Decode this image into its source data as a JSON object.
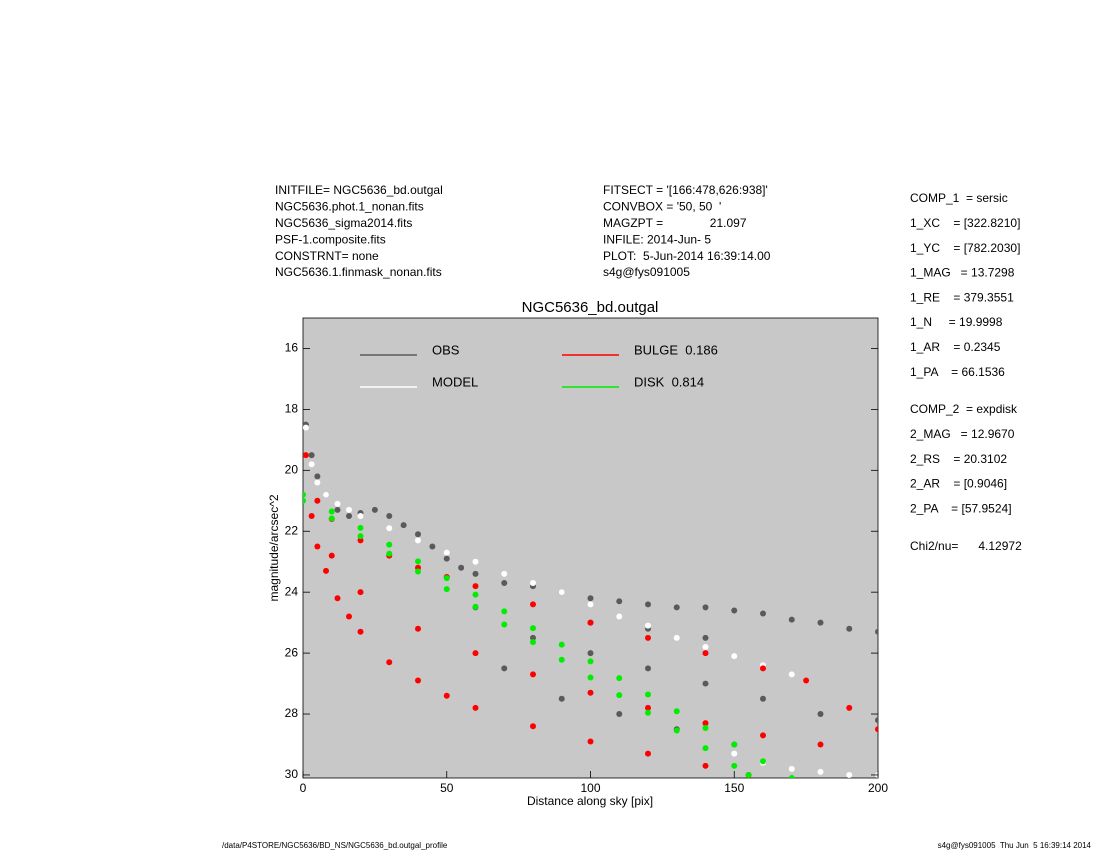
{
  "header_left": [
    "INITFILE= NGC5636_bd.outgal",
    "NGC5636.phot.1_nonan.fits",
    "NGC5636_sigma2014.fits",
    "PSF-1.composite.fits",
    "CONSTRNT= none",
    "NGC5636.1.finmask_nonan.fits"
  ],
  "header_middle": [
    "FITSECT = '[166:478,626:938]'",
    "CONVBOX = '50, 50  '",
    "MAGZPT =              21.097",
    "INFILE: 2014-Jun- 5",
    "PLOT:  5-Jun-2014 16:39:14.00",
    "s4g@fys091005"
  ],
  "params": [
    [
      "COMP_1  = sersic",
      "1_XC    = [322.8210]",
      "1_YC    = [782.2030]",
      "1_MAG   = 13.7298",
      "1_RE    = 379.3551",
      "1_N     = 19.9998",
      "1_AR    = 0.2345",
      "1_PA    = 66.1536"
    ],
    [
      "COMP_2  = expdisk",
      "2_MAG   = 12.9670",
      "2_RS    = 20.3102",
      "2_AR    = [0.9046]",
      "2_PA    = [57.9524]"
    ],
    [
      "Chi2/nu=      4.12972"
    ]
  ],
  "footer_left": "/data/P4STORE/NGC5636/BD_NS/NGC5636_bd.outgal_profile",
  "footer_right": "s4g@fys091005  Thu Jun  5 16:39:14 2014",
  "chart_data": {
    "type": "scatter",
    "title": "NGC5636_bd.outgal",
    "xlabel": "Distance along sky [pix]",
    "ylabel": "magnitude/arcsec^2",
    "xlim": [
      0,
      200
    ],
    "ylim": [
      30.1,
      15
    ],
    "xticks": [
      0,
      50,
      100,
      150,
      200
    ],
    "yticks": [
      16,
      18,
      20,
      22,
      24,
      26,
      28,
      30
    ],
    "background": "#c8c8c8",
    "series": [
      {
        "name": "OBS",
        "color": "#5a5a5a",
        "x": [
          1,
          3,
          5,
          8,
          12,
          16,
          20,
          25,
          30,
          35,
          40,
          45,
          50,
          55,
          60,
          70,
          80,
          90,
          100,
          110,
          120,
          130,
          140,
          150,
          160,
          170,
          180,
          190,
          200,
          60,
          80,
          100,
          120,
          140,
          160,
          180,
          200,
          70,
          90,
          110,
          130,
          150,
          100,
          120,
          140
        ],
        "y": [
          18.5,
          19.5,
          20.2,
          20.8,
          21.3,
          21.5,
          21.4,
          21.3,
          21.5,
          21.8,
          22.1,
          22.5,
          22.9,
          23.2,
          23.4,
          23.7,
          23.8,
          24.0,
          24.2,
          24.3,
          24.4,
          24.5,
          24.5,
          24.6,
          24.7,
          24.9,
          25.0,
          25.2,
          25.3,
          24.5,
          25.5,
          26,
          26.5,
          27,
          27.5,
          28,
          28.2,
          26.5,
          27.5,
          28,
          28.5,
          29,
          25,
          25.2,
          25.5
        ]
      },
      {
        "name": "MODEL",
        "color": "#ffffff",
        "x": [
          1,
          3,
          5,
          8,
          12,
          16,
          20,
          30,
          40,
          50,
          60,
          70,
          80,
          90,
          100,
          110,
          120,
          130,
          140,
          150,
          160,
          170,
          175,
          150,
          160,
          170,
          180,
          190,
          200
        ],
        "y": [
          18.6,
          19.8,
          20.4,
          20.8,
          21.1,
          21.3,
          21.5,
          21.9,
          22.3,
          22.7,
          23.0,
          23.4,
          23.7,
          24.0,
          24.4,
          24.8,
          25.1,
          25.5,
          25.8,
          26.1,
          26.4,
          26.7,
          26.9,
          29.3,
          29.6,
          29.8,
          29.9,
          30.0,
          30.0
        ]
      },
      {
        "name": "BULGE  0.186",
        "color": "#ff0000",
        "x": [
          1,
          5,
          10,
          20,
          30,
          40,
          50,
          60,
          80,
          100,
          120,
          140,
          160,
          175,
          190,
          200,
          3,
          5,
          8,
          12,
          16,
          20,
          30,
          40,
          50,
          60,
          80,
          100,
          120,
          140,
          155,
          10,
          20,
          40,
          60,
          80,
          100,
          120,
          140,
          160,
          180
        ],
        "y": [
          19.5,
          21.0,
          21.6,
          22.3,
          22.8,
          23.2,
          23.5,
          23.8,
          24.4,
          25.0,
          25.5,
          26.0,
          26.5,
          26.9,
          27.8,
          28.5,
          21.5,
          22.5,
          23.3,
          24.2,
          24.8,
          25.3,
          26.3,
          26.9,
          27.4,
          27.8,
          28.4,
          28.9,
          29.3,
          29.7,
          30.0,
          22.8,
          24.0,
          25.2,
          26.0,
          26.7,
          27.3,
          27.8,
          28.3,
          28.7,
          29.0
        ]
      },
      {
        "name": "DISK  0.814",
        "color": "#00ee00",
        "x": [
          0,
          10,
          20,
          30,
          40,
          50,
          60,
          70,
          80,
          90,
          100,
          110,
          120,
          130,
          140,
          150,
          160,
          170,
          0,
          10,
          20,
          30,
          40,
          50,
          60,
          70,
          80,
          90,
          100,
          110,
          120,
          130,
          140,
          150,
          155
        ],
        "y": [
          20.8,
          21.35,
          21.89,
          22.44,
          22.99,
          23.54,
          24.08,
          24.63,
          25.18,
          25.72,
          26.27,
          26.82,
          27.36,
          27.91,
          28.46,
          29.0,
          29.55,
          30.1,
          21.0,
          21.58,
          22.16,
          22.74,
          23.32,
          23.9,
          24.48,
          25.06,
          25.64,
          26.22,
          26.8,
          27.38,
          27.96,
          28.54,
          29.12,
          29.7,
          30.0
        ]
      }
    ]
  }
}
